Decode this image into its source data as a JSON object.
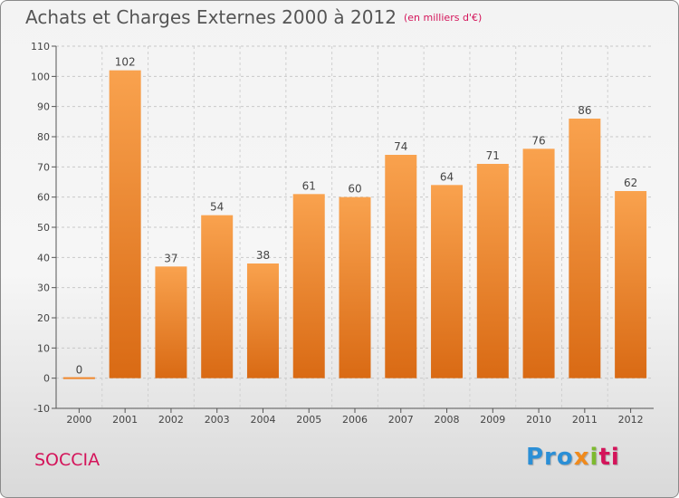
{
  "title": "Achats et Charges Externes 2000 à 2012",
  "subtitle": "(en milliers d'€)",
  "location": "SOCCIA",
  "logo": {
    "p1": "Pro",
    "p2": "x",
    "p3": "i",
    "p4": "ti"
  },
  "chart_data": {
    "type": "bar",
    "categories": [
      "2000",
      "2001",
      "2002",
      "2003",
      "2004",
      "2005",
      "2006",
      "2007",
      "2008",
      "2009",
      "2010",
      "2011",
      "2012"
    ],
    "values": [
      0,
      102,
      37,
      54,
      38,
      61,
      60,
      74,
      64,
      71,
      76,
      86,
      62
    ],
    "ylim": [
      -10,
      110
    ],
    "yticks": [
      -10,
      0,
      10,
      20,
      30,
      40,
      50,
      60,
      70,
      80,
      90,
      100,
      110
    ],
    "grid": true,
    "bar_color": "#f0862a"
  }
}
